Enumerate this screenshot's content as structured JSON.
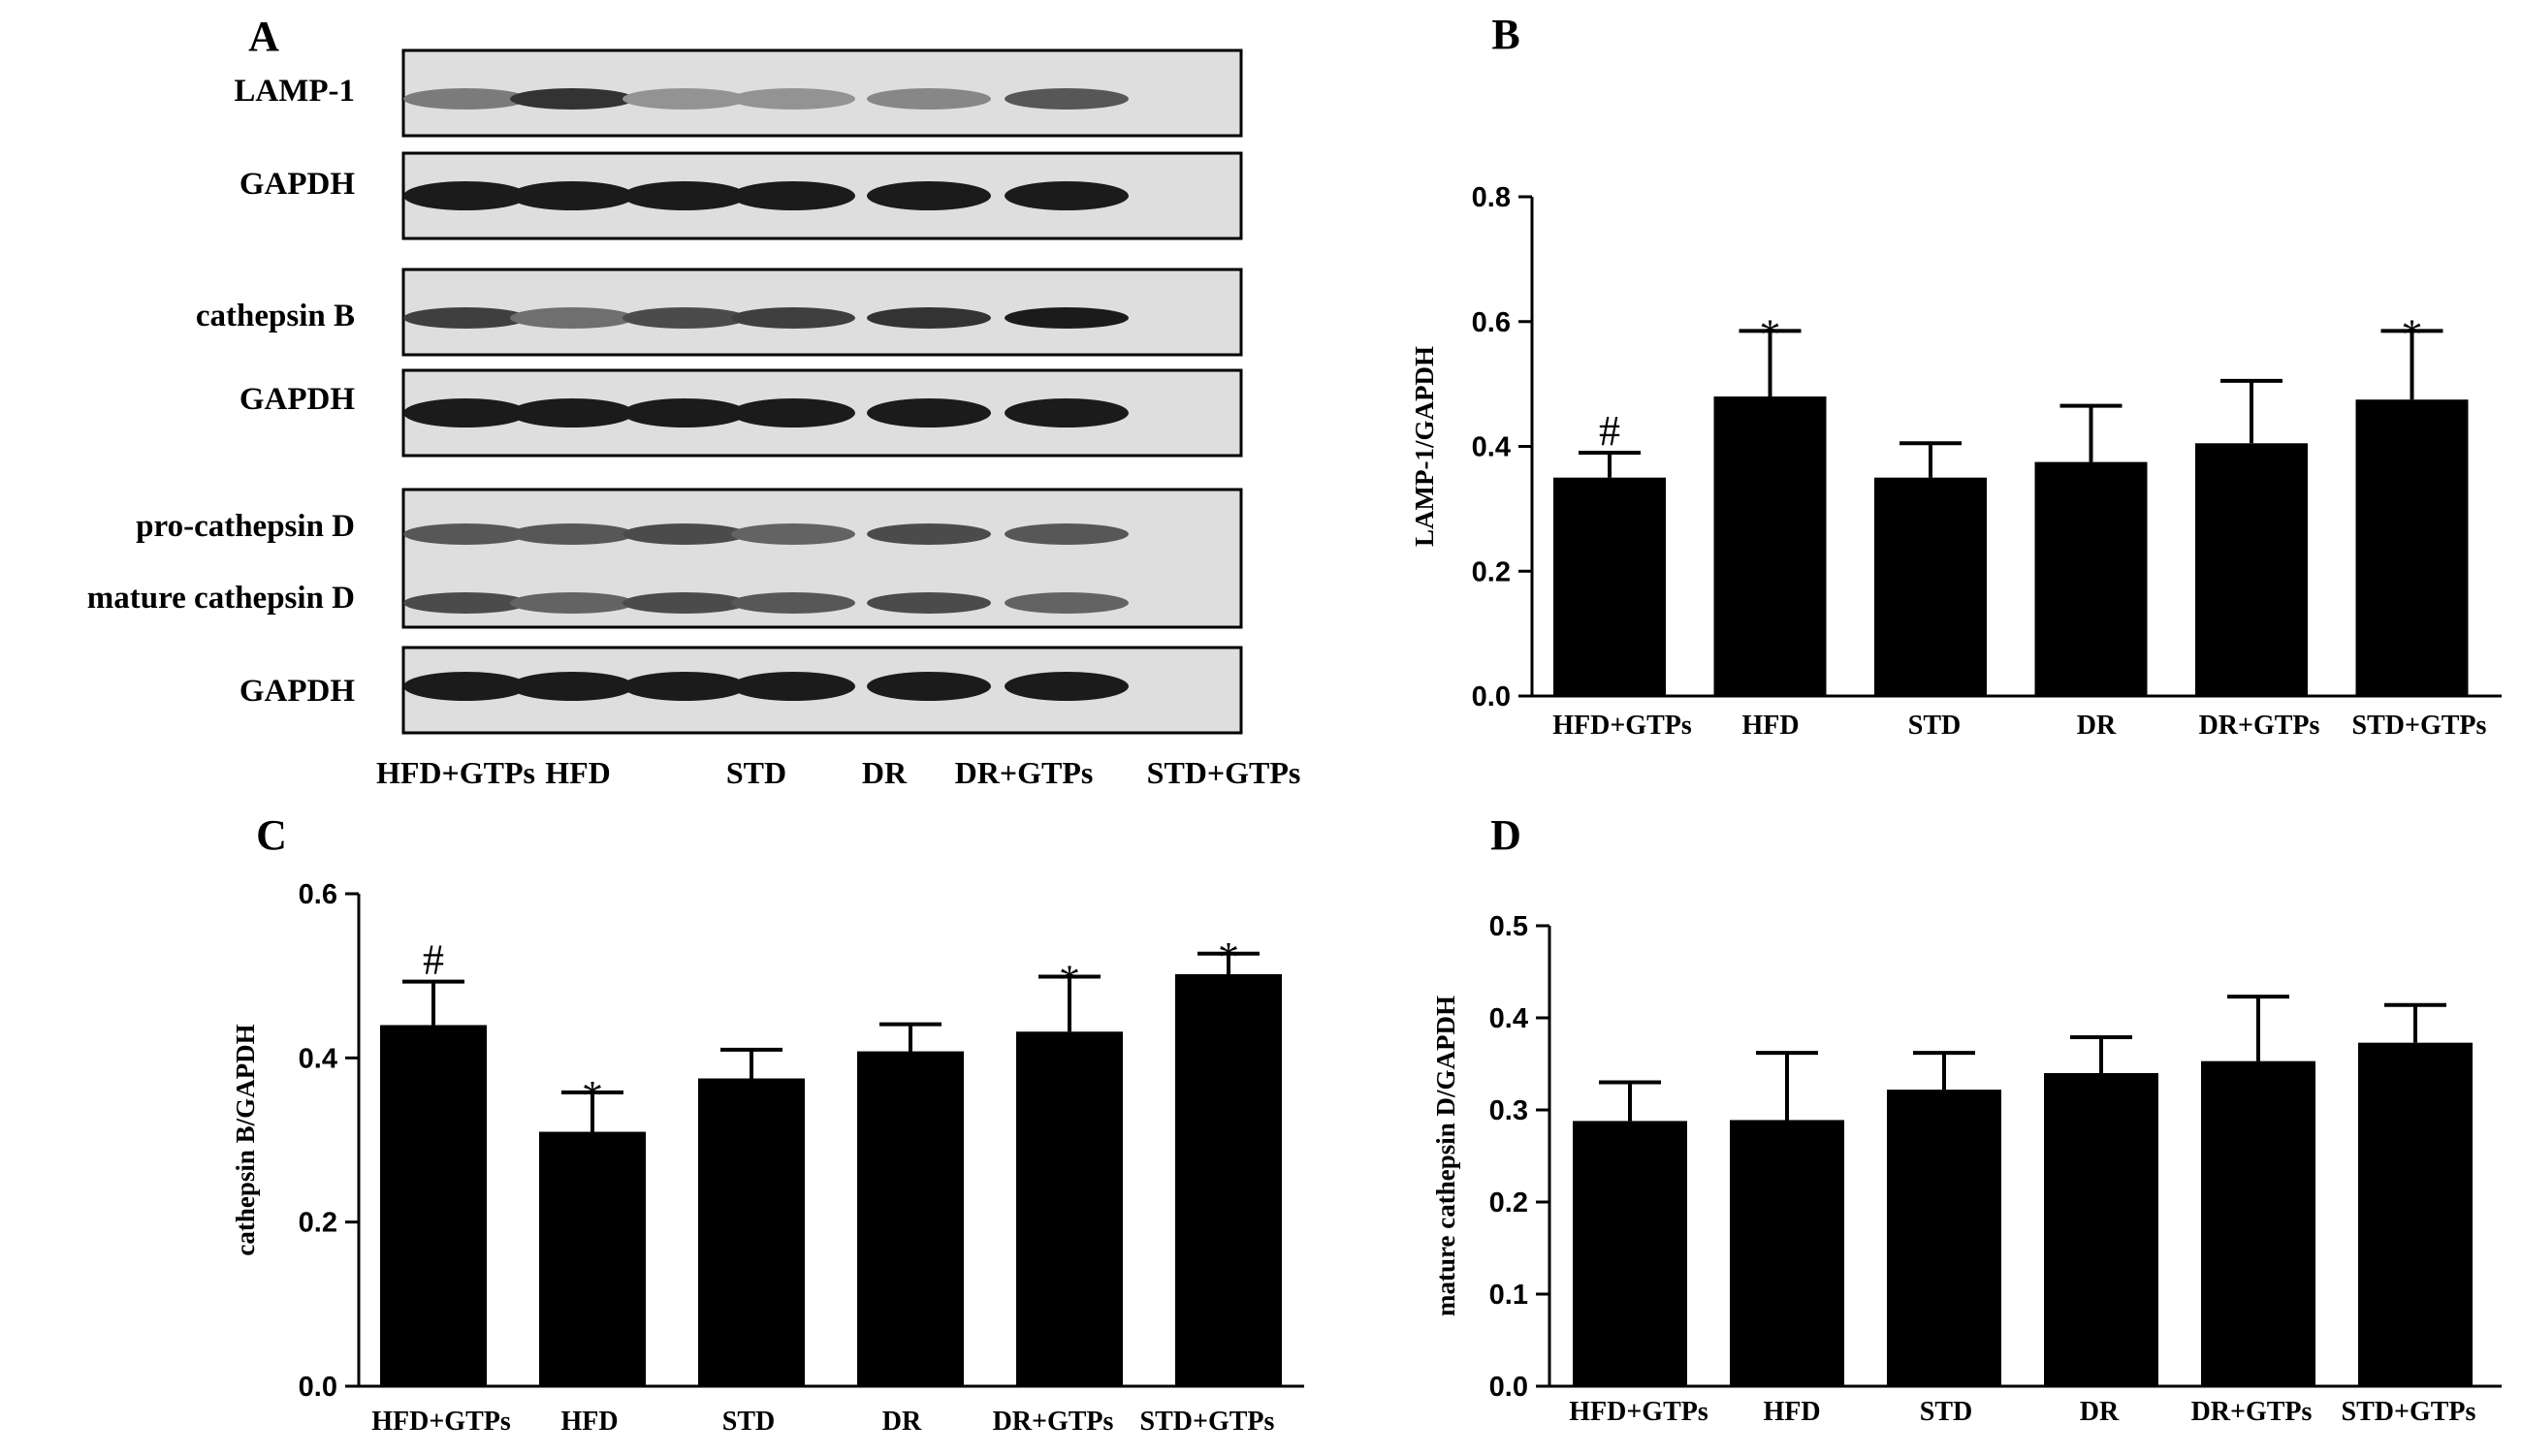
{
  "panel_labels": {
    "a": "A",
    "b": "B",
    "c": "C",
    "d": "D"
  },
  "blot": {
    "rows": [
      {
        "label": "LAMP-1",
        "intensity": [
          0.55,
          0.85,
          0.45,
          0.45,
          0.5,
          0.7
        ]
      },
      {
        "label": "GAPDH",
        "intensity": [
          0.95,
          0.95,
          0.95,
          0.95,
          0.95,
          0.95
        ]
      },
      {
        "label": "cathepsin B",
        "intensity": [
          0.8,
          0.6,
          0.75,
          0.8,
          0.85,
          0.95
        ]
      },
      {
        "label": "GAPDH",
        "intensity": [
          0.95,
          0.95,
          0.95,
          0.95,
          0.95,
          0.95
        ]
      },
      {
        "label": "pro-cathepsin D",
        "intensity": [
          0.7,
          0.7,
          0.75,
          0.65,
          0.75,
          0.7
        ]
      },
      {
        "label": "mature cathepsin D",
        "intensity": [
          0.75,
          0.65,
          0.75,
          0.7,
          0.75,
          0.65
        ]
      },
      {
        "label": "GAPDH",
        "intensity": [
          0.95,
          0.95,
          0.95,
          0.95,
          0.95,
          0.95
        ]
      }
    ],
    "lanes": [
      "HFD+GTPs",
      "HFD",
      "STD",
      "DR",
      "DR+GTPs",
      "STD+GTPs"
    ]
  },
  "chart_data": [
    {
      "panel": "B",
      "type": "bar",
      "categories": [
        "HFD+GTPs",
        "HFD",
        "STD",
        "DR",
        "DR+GTPs",
        "STD+GTPs"
      ],
      "values": [
        0.35,
        0.48,
        0.35,
        0.375,
        0.405,
        0.475
      ],
      "errors": [
        0.04,
        0.105,
        0.055,
        0.09,
        0.1,
        0.11
      ],
      "significance": [
        "#",
        "*",
        "",
        "",
        "",
        "*"
      ],
      "ylabel": "LAMP-1/GAPDH",
      "ylim": [
        0,
        0.8
      ],
      "yticks": [
        "0.0",
        "0.2",
        "0.4",
        "0.6",
        "0.8"
      ]
    },
    {
      "panel": "C",
      "type": "bar",
      "categories": [
        "HFD+GTPs",
        "HFD",
        "STD",
        "DR",
        "DR+GTPs",
        "STD+GTPs"
      ],
      "values": [
        0.44,
        0.31,
        0.375,
        0.408,
        0.432,
        0.502
      ],
      "errors": [
        0.053,
        0.048,
        0.035,
        0.033,
        0.067,
        0.025
      ],
      "significance": [
        "#",
        "*",
        "",
        "",
        "*",
        "*"
      ],
      "ylabel": "cathepsin B/GAPDH",
      "ylim": [
        0,
        0.6
      ],
      "yticks": [
        "0.0",
        "0.2",
        "0.4",
        "0.6"
      ]
    },
    {
      "panel": "D",
      "type": "bar",
      "categories": [
        "HFD+GTPs",
        "HFD",
        "STD",
        "DR",
        "DR+GTPs",
        "STD+GTPs"
      ],
      "values": [
        0.288,
        0.289,
        0.322,
        0.34,
        0.353,
        0.373
      ],
      "errors": [
        0.042,
        0.073,
        0.04,
        0.039,
        0.07,
        0.041
      ],
      "significance": [
        "",
        "",
        "",
        "",
        "",
        ""
      ],
      "ylabel": "mature cathepsin D/GAPDH",
      "ylim": [
        0,
        0.5
      ],
      "yticks": [
        "0.0",
        "0.1",
        "0.2",
        "0.3",
        "0.4",
        "0.5"
      ]
    }
  ]
}
